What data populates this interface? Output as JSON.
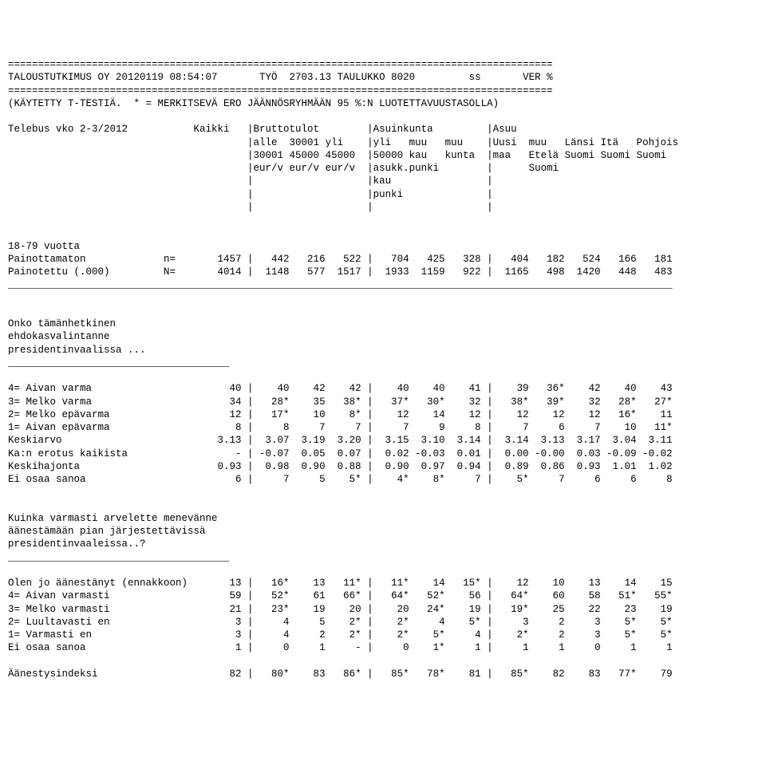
{
  "sep": "===========================================================================================",
  "hdr": {
    "left": "TALOUSTUTKIMUS OY 20120119 08:54:07",
    "mid1": "TYÖ",
    "work": "2703.13",
    "mid2": "TAULUKKO 8020",
    "ss": "ss",
    "ver": "VER %"
  },
  "note1": "(KÄYTETTY T-TESTIÄ.  * = MERKITSEVÄ ERO JÄÄNNÖSRYHMÄÄN 95 %:N LUOTETTAVUUSTASOLLA)",
  "period": "Telebus vko 2-3/2012",
  "ch": {
    "kaikki": "Kaikki",
    "brutto": "Bruttotulot",
    "asuink": "Asuinkunta",
    "asuu": "Asuu",
    "r2": {
      "c1": "alle",
      "c2": "30001",
      "c3": "yli",
      "c4": "yli",
      "c5": "muu",
      "c6": "muu",
      "c7": "Uusi",
      "c8": "muu",
      "c9": "Länsi",
      "c10": "Itä",
      "c11": "Pohjois"
    },
    "r3": {
      "c1": "30001",
      "c2": "45000",
      "c3": "45000",
      "c4": "50000",
      "c5": "kau",
      "c6": "kunta",
      "c7": "maa",
      "c8": "Etelä",
      "c9": "Suomi",
      "c10": "Suomi",
      "c11": "Suomi"
    },
    "r4": {
      "c1": "eur/v",
      "c2": "eur/v",
      "c3": "eur/v",
      "c4": "asukk.",
      "c5": "punki",
      "c8": "Suomi"
    },
    "r5": {
      "c4": "kau"
    },
    "r6": {
      "c4": "punki"
    }
  },
  "stub1": {
    "title": "18-79 vuotta",
    "r1": "Painottamaton",
    "neq": "n=",
    "r2": "Painotettu (.000)",
    "Neq": "N=",
    "v1": [
      "1457",
      "442",
      "216",
      "522",
      "704",
      "425",
      "328",
      "404",
      "182",
      "524",
      "166",
      "181"
    ],
    "v2": [
      "4014",
      "1148",
      "577",
      "1517",
      "1933",
      "1159",
      "922",
      "1165",
      "498",
      "1420",
      "448",
      "483"
    ]
  },
  "q1": {
    "l1": "Onko tämänhetkinen",
    "l2": "ehdokasvalintanne",
    "l3": "presidentinvaalissa ...",
    "rows": [
      {
        "l": "4= Aivan varma",
        "v": [
          "40",
          "40",
          "42",
          "42",
          "40",
          "40",
          "41",
          "39",
          "36*",
          "42",
          "40",
          "43"
        ]
      },
      {
        "l": "3= Melko varma",
        "v": [
          "34",
          "28*",
          "35",
          "38*",
          "37*",
          "30*",
          "32",
          "38*",
          "39*",
          "32",
          "28*",
          "27*"
        ]
      },
      {
        "l": "2= Melko epävarma",
        "v": [
          "12",
          "17*",
          "10",
          "8*",
          "12",
          "14",
          "12",
          "12",
          "12",
          "12",
          "16*",
          "11"
        ]
      },
      {
        "l": "1= Aivan epävarma",
        "v": [
          "8",
          "8",
          "7",
          "7",
          "7",
          "9",
          "8",
          "7",
          "6",
          "7",
          "10",
          "11*"
        ]
      },
      {
        "l": "Keskiarvo",
        "v": [
          "3.13",
          "3.07",
          "3.19",
          "3.20",
          "3.15",
          "3.10",
          "3.14",
          "3.14",
          "3.13",
          "3.17",
          "3.04",
          "3.11"
        ]
      },
      {
        "l": "Ka:n erotus kaikista",
        "v": [
          "-",
          "-0.07",
          "0.05",
          "0.07",
          "0.02",
          "-0.03",
          "0.01",
          "0.00",
          "-0.00",
          "0.03",
          "-0.09",
          "-0.02"
        ]
      },
      {
        "l": "Keskihajonta",
        "v": [
          "0.93",
          "0.98",
          "0.90",
          "0.88",
          "0.90",
          "0.97",
          "0.94",
          "0.89",
          "0.86",
          "0.93",
          "1.01",
          "1.02"
        ]
      },
      {
        "l": "Ei osaa sanoa",
        "v": [
          "6",
          "7",
          "5",
          "5*",
          "4*",
          "8*",
          "7",
          "5*",
          "7",
          "6",
          "6",
          "8"
        ]
      }
    ]
  },
  "q2": {
    "l1": "Kuinka varmasti arvelette menevänne",
    "l2": "äänestämään pian järjestettävissä",
    "l3": "presidentinvaaleissa..?",
    "rows": [
      {
        "l": "Olen jo äänestänyt (ennakkoon)",
        "v": [
          "13",
          "16*",
          "13",
          "11*",
          "11*",
          "14",
          "15*",
          "12",
          "10",
          "13",
          "14",
          "15"
        ]
      },
      {
        "l": "4= Aivan varmasti",
        "v": [
          "59",
          "52*",
          "61",
          "66*",
          "64*",
          "52*",
          "56",
          "64*",
          "60",
          "58",
          "51*",
          "55*"
        ]
      },
      {
        "l": "3= Melko varmasti",
        "v": [
          "21",
          "23*",
          "19",
          "20",
          "20",
          "24*",
          "19",
          "19*",
          "25",
          "22",
          "23",
          "19"
        ]
      },
      {
        "l": "2= Luultavasti en",
        "v": [
          "3",
          "4",
          "5",
          "2*",
          "2*",
          "4",
          "5*",
          "3",
          "2",
          "3",
          "5*",
          "5*"
        ]
      },
      {
        "l": "1= Varmasti en",
        "v": [
          "3",
          "4",
          "2",
          "2*",
          "2*",
          "5*",
          "4",
          "2*",
          "2",
          "3",
          "5*",
          "5*"
        ]
      },
      {
        "l": "Ei osaa sanoa",
        "v": [
          "1",
          "0",
          "1",
          "-",
          "0",
          "1*",
          "1",
          "1",
          "1",
          "0",
          "1",
          "1"
        ]
      }
    ],
    "idx_label": "Äänestysindeksi",
    "idx": [
      "82",
      "80*",
      "83",
      "86*",
      "85*",
      "78*",
      "81",
      "85*",
      "82",
      "83",
      "77*",
      "79"
    ]
  },
  "colw": {
    "label": 31,
    "kaikki": 8,
    "col": 6
  }
}
